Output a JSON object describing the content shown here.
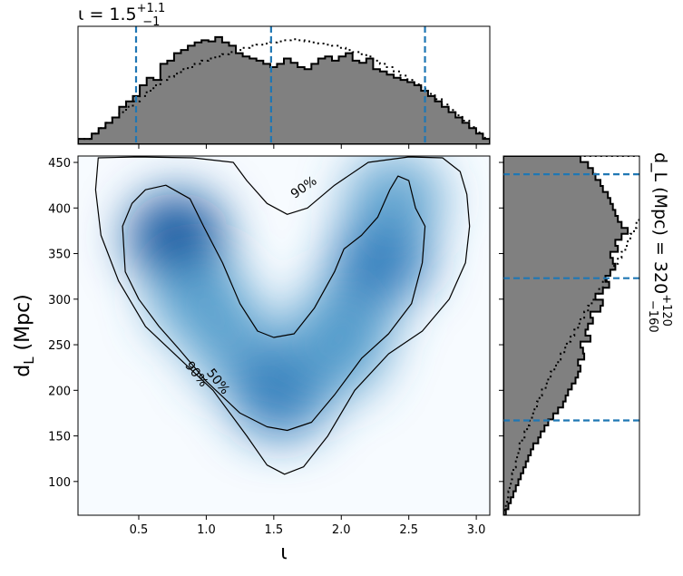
{
  "chart_data": [
    {
      "type": "heatmap",
      "panel": "joint",
      "xlabel": "ι",
      "ylabel": "d_L (Mpc)",
      "xlim": [
        0.05,
        3.1
      ],
      "ylim": [
        63,
        457
      ],
      "x_ticks": [
        "0.5",
        "1.0",
        "1.5",
        "2.0",
        "2.5",
        "3.0"
      ],
      "x_tick_values": [
        0.5,
        1.0,
        1.5,
        2.0,
        2.5,
        3.0
      ],
      "y_ticks": [
        "100",
        "150",
        "200",
        "250",
        "300",
        "350",
        "400",
        "450"
      ],
      "y_tick_values": [
        100,
        150,
        200,
        250,
        300,
        350,
        400,
        450
      ],
      "colormap": "Blues",
      "density_peaks": [
        {
          "x": 0.78,
          "y": 368,
          "weight": 1.0
        },
        {
          "x": 0.95,
          "y": 300,
          "weight": 0.65
        },
        {
          "x": 1.25,
          "y": 245,
          "weight": 0.5
        },
        {
          "x": 1.55,
          "y": 195,
          "weight": 0.75
        },
        {
          "x": 1.95,
          "y": 240,
          "weight": 0.5
        },
        {
          "x": 2.05,
          "y": 280,
          "weight": 0.5
        },
        {
          "x": 2.3,
          "y": 345,
          "weight": 0.8
        },
        {
          "x": 2.4,
          "y": 410,
          "weight": 0.5
        }
      ],
      "contours": [
        {
          "label": "90%",
          "level": 0.9,
          "points": [
            [
              0.2,
              455
            ],
            [
              0.18,
              420
            ],
            [
              0.22,
              370
            ],
            [
              0.35,
              320
            ],
            [
              0.55,
              270
            ],
            [
              0.8,
              235
            ],
            [
              1.05,
              200
            ],
            [
              1.3,
              150
            ],
            [
              1.45,
              118
            ],
            [
              1.58,
              108
            ],
            [
              1.72,
              116
            ],
            [
              1.9,
              150
            ],
            [
              2.1,
              200
            ],
            [
              2.35,
              240
            ],
            [
              2.6,
              265
            ],
            [
              2.8,
              300
            ],
            [
              2.92,
              340
            ],
            [
              2.95,
              380
            ],
            [
              2.93,
              415
            ],
            [
              2.88,
              440
            ],
            [
              2.75,
              455
            ],
            [
              2.5,
              456
            ],
            [
              2.2,
              450
            ],
            [
              1.95,
              425
            ],
            [
              1.75,
              400
            ],
            [
              1.6,
              393
            ],
            [
              1.45,
              405
            ],
            [
              1.3,
              430
            ],
            [
              1.2,
              450
            ],
            [
              0.9,
              455
            ],
            [
              0.5,
              456
            ],
            [
              0.2,
              455
            ]
          ]
        },
        {
          "label": "50%",
          "level": 0.5,
          "points": [
            [
              0.45,
              405
            ],
            [
              0.38,
              380
            ],
            [
              0.4,
              330
            ],
            [
              0.5,
              300
            ],
            [
              0.65,
              270
            ],
            [
              0.8,
              245
            ],
            [
              1.0,
              210
            ],
            [
              1.25,
              175
            ],
            [
              1.45,
              160
            ],
            [
              1.6,
              156
            ],
            [
              1.78,
              165
            ],
            [
              1.95,
              195
            ],
            [
              2.15,
              235
            ],
            [
              2.35,
              262
            ],
            [
              2.52,
              295
            ],
            [
              2.6,
              340
            ],
            [
              2.62,
              380
            ],
            [
              2.55,
              400
            ],
            [
              2.5,
              430
            ],
            [
              2.42,
              435
            ],
            [
              2.36,
              420
            ],
            [
              2.27,
              390
            ],
            [
              2.15,
              370
            ],
            [
              2.02,
              355
            ],
            [
              1.95,
              330
            ],
            [
              1.8,
              290
            ],
            [
              1.65,
              262
            ],
            [
              1.5,
              258
            ],
            [
              1.38,
              265
            ],
            [
              1.25,
              295
            ],
            [
              1.12,
              340
            ],
            [
              0.98,
              380
            ],
            [
              0.88,
              410
            ],
            [
              0.7,
              425
            ],
            [
              0.55,
              420
            ],
            [
              0.45,
              405
            ]
          ]
        }
      ]
    },
    {
      "type": "histogram",
      "panel": "top-marginal",
      "title": "ι = 1.5",
      "title_sup": "+1.1",
      "title_sub": "−1",
      "xlim": [
        0.05,
        3.1
      ],
      "bins": 60,
      "values": [
        0.05,
        0.05,
        0.1,
        0.15,
        0.2,
        0.25,
        0.35,
        0.4,
        0.45,
        0.55,
        0.62,
        0.6,
        0.75,
        0.78,
        0.85,
        0.88,
        0.92,
        0.95,
        0.97,
        0.96,
        1.0,
        0.95,
        0.92,
        0.85,
        0.82,
        0.8,
        0.78,
        0.75,
        0.72,
        0.75,
        0.8,
        0.76,
        0.72,
        0.7,
        0.75,
        0.8,
        0.82,
        0.78,
        0.82,
        0.85,
        0.78,
        0.76,
        0.8,
        0.7,
        0.68,
        0.65,
        0.62,
        0.6,
        0.58,
        0.55,
        0.5,
        0.45,
        0.4,
        0.35,
        0.3,
        0.25,
        0.2,
        0.15,
        0.1,
        0.05
      ],
      "prior": [
        0.05,
        0.05,
        0.1,
        0.15,
        0.2,
        0.25,
        0.3,
        0.35,
        0.4,
        0.45,
        0.5,
        0.55,
        0.6,
        0.63,
        0.66,
        0.7,
        0.72,
        0.75,
        0.78,
        0.8,
        0.82,
        0.84,
        0.86,
        0.88,
        0.9,
        0.92,
        0.93,
        0.94,
        0.95,
        0.96,
        0.97,
        0.98,
        0.97,
        0.96,
        0.95,
        0.94,
        0.93,
        0.92,
        0.9,
        0.88,
        0.86,
        0.84,
        0.82,
        0.78,
        0.75,
        0.72,
        0.68,
        0.64,
        0.6,
        0.56,
        0.52,
        0.47,
        0.42,
        0.37,
        0.32,
        0.27,
        0.22,
        0.16,
        0.11,
        0.06
      ],
      "quantile_lines": [
        0.48,
        1.48,
        2.62
      ]
    },
    {
      "type": "histogram",
      "panel": "right-marginal",
      "title": "d_L (Mpc) = 320",
      "title_sup": "+120",
      "title_sub": "−160",
      "orientation": "horizontal",
      "ylim": [
        63,
        457
      ],
      "bins": 60,
      "values": [
        0.02,
        0.04,
        0.06,
        0.08,
        0.1,
        0.12,
        0.14,
        0.16,
        0.18,
        0.2,
        0.22,
        0.24,
        0.28,
        0.3,
        0.33,
        0.36,
        0.4,
        0.44,
        0.48,
        0.5,
        0.52,
        0.55,
        0.58,
        0.6,
        0.62,
        0.6,
        0.65,
        0.64,
        0.62,
        0.7,
        0.66,
        0.68,
        0.72,
        0.7,
        0.78,
        0.8,
        0.74,
        0.8,
        0.85,
        0.82,
        0.86,
        0.9,
        0.88,
        0.86,
        0.92,
        0.9,
        0.95,
        1.0,
        0.95,
        0.92,
        0.9,
        0.88,
        0.86,
        0.84,
        0.8,
        0.78,
        0.74,
        0.72,
        0.68,
        0.62
      ],
      "prior": [
        0.01,
        0.02,
        0.03,
        0.04,
        0.05,
        0.06,
        0.07,
        0.08,
        0.1,
        0.11,
        0.12,
        0.13,
        0.15,
        0.17,
        0.19,
        0.21,
        0.23,
        0.25,
        0.27,
        0.29,
        0.31,
        0.34,
        0.36,
        0.38,
        0.41,
        0.44,
        0.46,
        0.49,
        0.51,
        0.54,
        0.57,
        0.6,
        0.62,
        0.65,
        0.68,
        0.71,
        0.74,
        0.77,
        0.8,
        0.83,
        0.86,
        0.89,
        0.92,
        0.95,
        0.98,
        1.0,
        1.02,
        1.05,
        1.07,
        1.09,
        1.1,
        1.12,
        1.14,
        1.16,
        1.18,
        1.19,
        1.2,
        1.22,
        1.23,
        1.25
      ],
      "quantile_lines": [
        167,
        323,
        437
      ]
    }
  ]
}
